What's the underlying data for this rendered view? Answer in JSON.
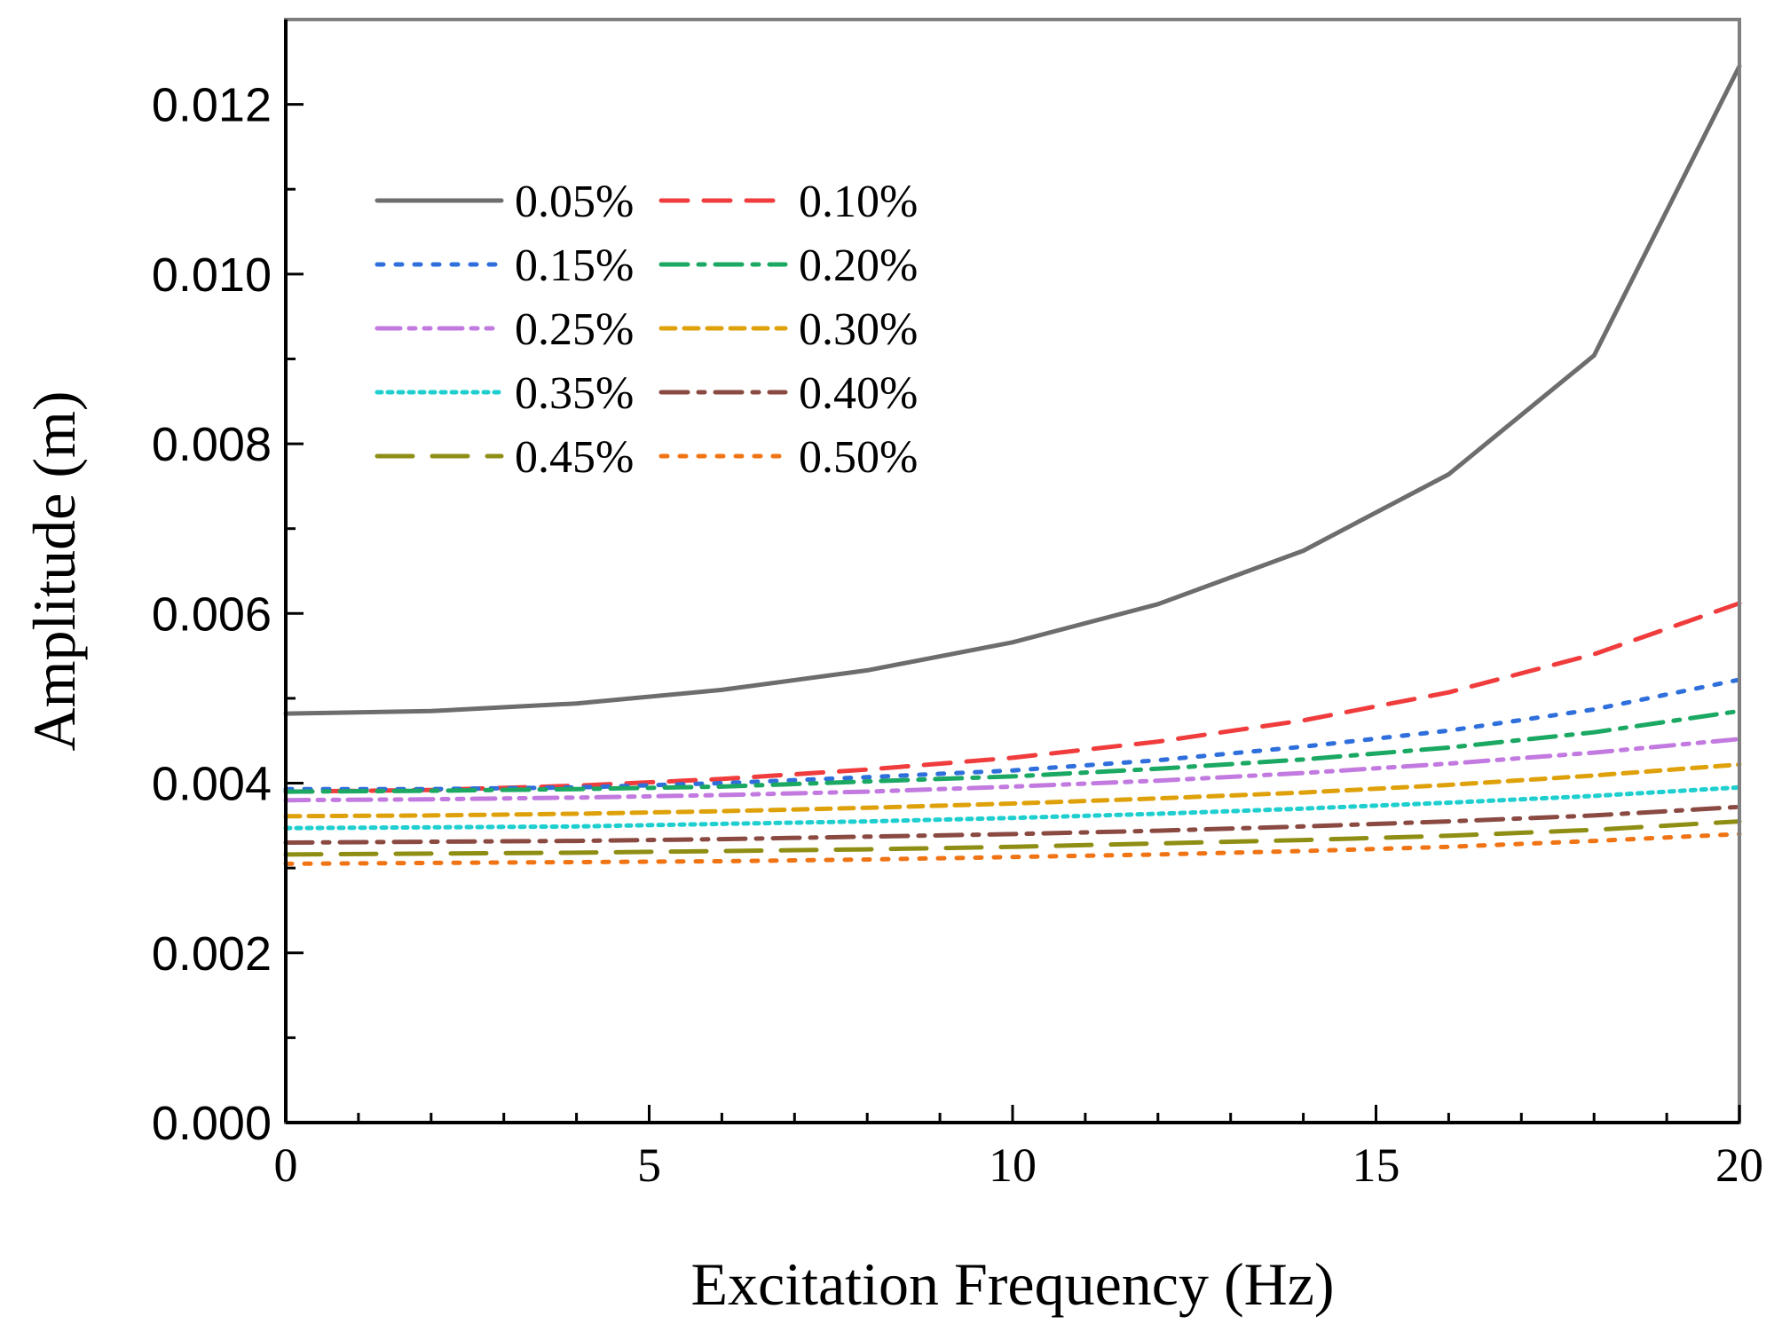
{
  "chart_data": {
    "type": "line",
    "xlabel": "Excitation Frequency (Hz)",
    "ylabel": "Amplitude (m)",
    "xlim": [
      0,
      20
    ],
    "ylim": [
      0,
      0.013
    ],
    "x_ticks": [
      "0",
      "5",
      "10",
      "15",
      "20"
    ],
    "y_ticks": [
      "0.000",
      "0.002",
      "0.004",
      "0.006",
      "0.008",
      "0.010",
      "0.012"
    ],
    "x": [
      0,
      2,
      4,
      6,
      8,
      10,
      12,
      14,
      16,
      18,
      20
    ],
    "grid": false,
    "legend_position": "top-left",
    "series": [
      {
        "name": "0.05%",
        "color": "#6d6d6d",
        "dash": "solid",
        "values": [
          0.00482,
          0.00485,
          0.00494,
          0.0051,
          0.00533,
          0.00566,
          0.00611,
          0.00674,
          0.00764,
          0.00904,
          0.01245
        ]
      },
      {
        "name": "0.10%",
        "color": "#f03c3c",
        "dash": "dash",
        "values": [
          0.0039,
          0.00392,
          0.00397,
          0.00405,
          0.00416,
          0.0043,
          0.00449,
          0.00474,
          0.00507,
          0.00552,
          0.00612
        ]
      },
      {
        "name": "0.15%",
        "color": "#2f6fdc",
        "dash": "dot",
        "values": [
          0.00393,
          0.00393,
          0.00395,
          0.004,
          0.00407,
          0.00415,
          0.00427,
          0.00443,
          0.00462,
          0.00487,
          0.00522
        ]
      },
      {
        "name": "0.20%",
        "color": "#1aa862",
        "dash": "dashdot",
        "values": [
          0.0039,
          0.00391,
          0.00393,
          0.00396,
          0.00402,
          0.00408,
          0.00417,
          0.00428,
          0.00442,
          0.0046,
          0.00485
        ]
      },
      {
        "name": "0.25%",
        "color": "#c27ae0",
        "dash": "dashdotdot",
        "values": [
          0.0038,
          0.00381,
          0.00383,
          0.00386,
          0.0039,
          0.00396,
          0.00403,
          0.00412,
          0.00423,
          0.00436,
          0.00452
        ]
      },
      {
        "name": "0.30%",
        "color": "#dea10a",
        "dash": "shortdash",
        "values": [
          0.00361,
          0.00362,
          0.00364,
          0.00367,
          0.00371,
          0.00376,
          0.00382,
          0.00389,
          0.00398,
          0.00409,
          0.00422
        ]
      },
      {
        "name": "0.35%",
        "color": "#1fcfcf",
        "dash": "shortdot",
        "values": [
          0.00347,
          0.00348,
          0.00349,
          0.00352,
          0.00355,
          0.00359,
          0.00364,
          0.0037,
          0.00377,
          0.00385,
          0.00395
        ]
      },
      {
        "name": "0.40%",
        "color": "#8a4a42",
        "dash": "dashdot",
        "values": [
          0.0033,
          0.00331,
          0.00332,
          0.00334,
          0.00337,
          0.0034,
          0.00344,
          0.00349,
          0.00355,
          0.00362,
          0.00372
        ]
      },
      {
        "name": "0.45%",
        "color": "#8f8e14",
        "dash": "longdash",
        "values": [
          0.00316,
          0.00317,
          0.00318,
          0.0032,
          0.00322,
          0.00325,
          0.00329,
          0.00333,
          0.00338,
          0.00345,
          0.00355
        ]
      },
      {
        "name": "0.50%",
        "color": "#f07414",
        "dash": "dot",
        "values": [
          0.00305,
          0.00306,
          0.00307,
          0.00308,
          0.0031,
          0.00313,
          0.00316,
          0.0032,
          0.00325,
          0.00332,
          0.0034
        ]
      }
    ]
  }
}
